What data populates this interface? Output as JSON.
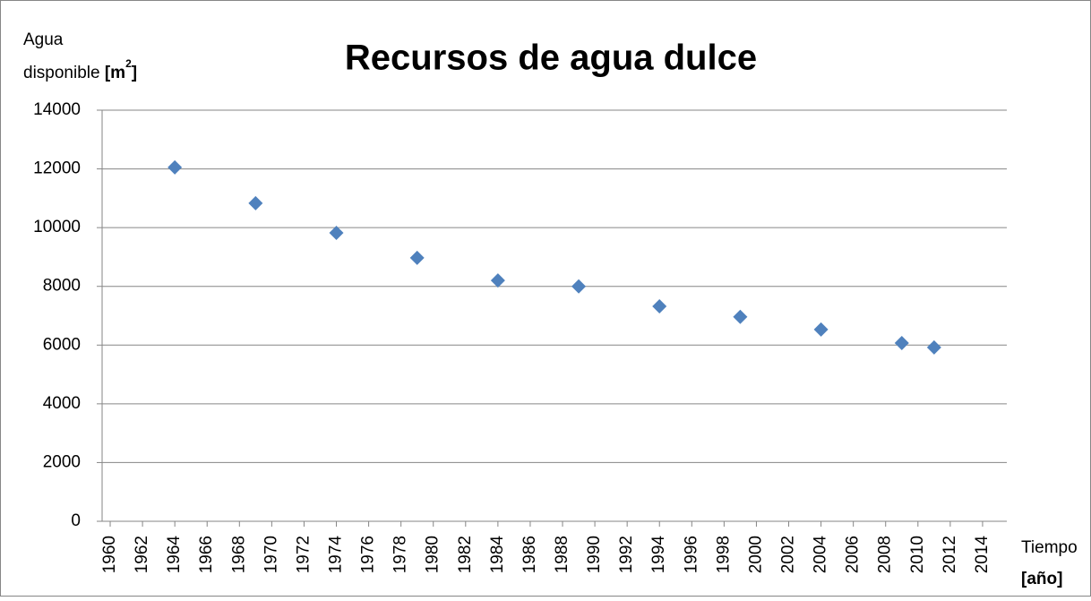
{
  "chart_data": {
    "type": "scatter",
    "title": "Recursos de agua dulce",
    "y_label": [
      "Agua",
      "disponible"
    ],
    "y_unit": {
      "open": "[m",
      "sup": "2",
      "close": "]"
    },
    "x_label": "Tiempo",
    "x_unit": "[año]",
    "series": [
      {
        "name": "Agua disponible",
        "color": "#4f81bd",
        "x": [
          1964,
          1969,
          1974,
          1979,
          1984,
          1989,
          1994,
          1999,
          2004,
          2009,
          2011
        ],
        "values": [
          12050,
          10830,
          9820,
          8970,
          8200,
          8000,
          7320,
          6960,
          6530,
          6070,
          5920
        ]
      }
    ],
    "xlim": [
      1959.5,
      2015.5
    ],
    "xticks": [
      1960,
      1962,
      1964,
      1966,
      1968,
      1970,
      1972,
      1974,
      1976,
      1978,
      1980,
      1982,
      1984,
      1986,
      1988,
      1990,
      1992,
      1994,
      1996,
      1998,
      2000,
      2002,
      2004,
      2006,
      2008,
      2010,
      2012,
      2014
    ],
    "ylim": [
      0,
      14000
    ],
    "yticks": [
      0,
      2000,
      4000,
      6000,
      8000,
      10000,
      12000,
      14000
    ],
    "grid": true
  }
}
